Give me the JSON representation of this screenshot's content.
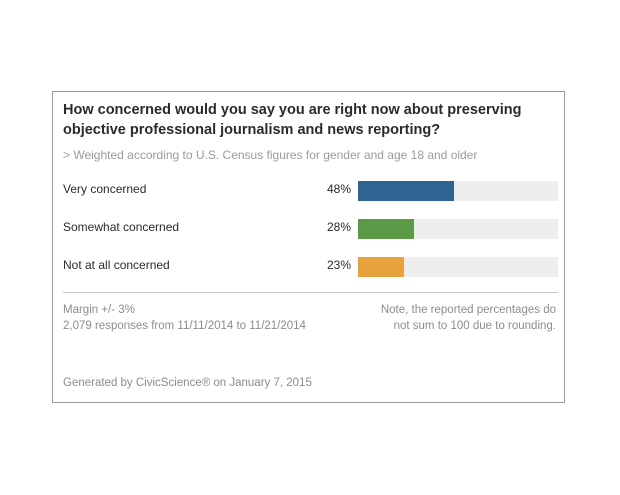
{
  "chart_data": {
    "type": "bar",
    "orientation": "horizontal",
    "title": "How concerned would you say you are right now about preserving objective professional journalism and news reporting?",
    "subtitle": "> Weighted according to U.S. Census figures for gender and age 18 and older",
    "categories": [
      "Very concerned",
      "Somewhat concerned",
      "Not at all concerned"
    ],
    "values": [
      48,
      28,
      23
    ],
    "value_labels": [
      "48%",
      "28%",
      "23%"
    ],
    "colors": [
      "#2e6491",
      "#5d9a47",
      "#e8a23c"
    ],
    "track_color": "#eeeeee",
    "xlim": [
      0,
      100
    ],
    "grid": false
  },
  "footer": {
    "margin": "Margin +/- 3%",
    "responses": "2,079 responses from 11/11/2014 to 11/21/2014",
    "note_line1": "Note, the reported percentages do",
    "note_line2": "not sum to 100 due to rounding.",
    "generated": "Generated by CivicScience® on January 7, 2015"
  }
}
